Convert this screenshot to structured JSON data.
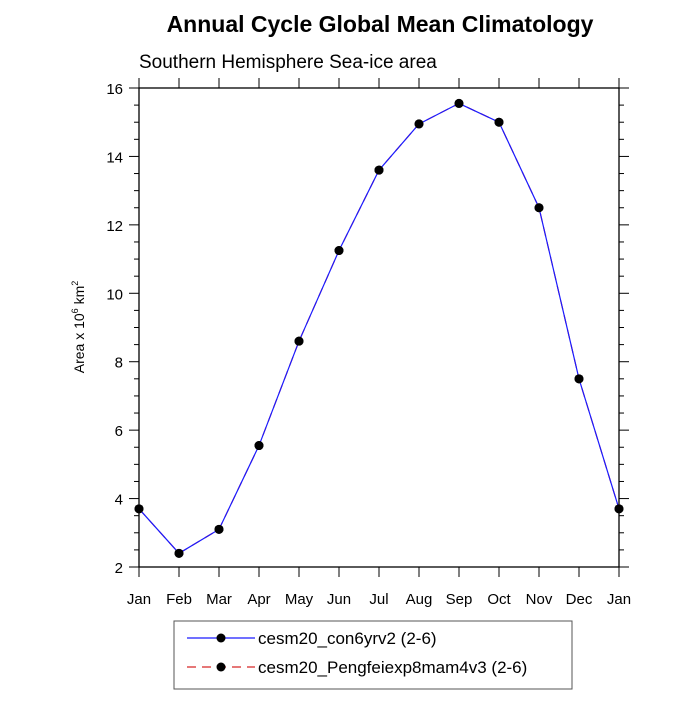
{
  "chart_data": {
    "type": "line",
    "title": "Annual Cycle Global Mean Climatology",
    "subtitle": "Southern Hemisphere Sea-ice area",
    "xlabel": "",
    "ylabel": {
      "prefix": "Area x 10",
      "sup1": "6",
      "mid": " km",
      "sup2": "2"
    },
    "categories": [
      "Jan",
      "Feb",
      "Mar",
      "Apr",
      "May",
      "Jun",
      "Jul",
      "Aug",
      "Sep",
      "Oct",
      "Nov",
      "Dec",
      "Jan"
    ],
    "ylim": [
      2,
      16
    ],
    "yticks": [
      2,
      4,
      6,
      8,
      10,
      12,
      14,
      16
    ],
    "grid": false,
    "legend_position": "bottom",
    "series": [
      {
        "name": "cesm20_con6yrv2 (2-6)",
        "color": "#1a1aff",
        "line_style": "solid",
        "marker": "filled-circle",
        "values": [
          3.7,
          2.4,
          3.1,
          5.55,
          8.6,
          11.25,
          13.6,
          14.95,
          15.55,
          15.0,
          12.5,
          7.5,
          3.7
        ]
      },
      {
        "name": "cesm20_Pengfeiexp8mam4v3 (2-6)",
        "color": "#d62728",
        "line_style": "dashed",
        "marker": "filled-circle",
        "values": [
          3.7,
          2.4,
          3.1,
          5.55,
          8.6,
          11.25,
          13.6,
          14.95,
          15.55,
          15.0,
          12.5,
          7.5,
          3.7
        ]
      }
    ]
  }
}
